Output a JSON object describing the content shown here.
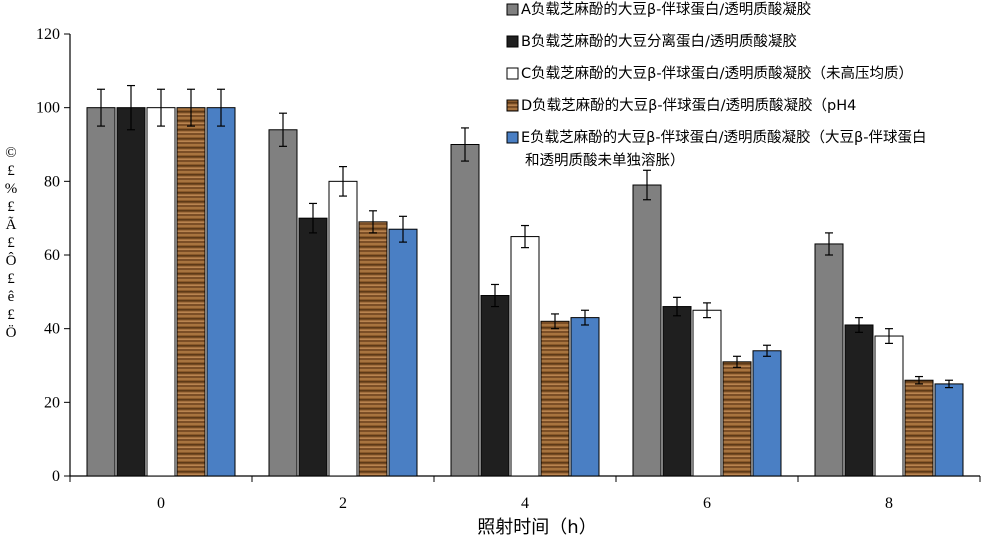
{
  "chart_data": {
    "type": "bar",
    "categories": [
      "0",
      "2",
      "4",
      "6",
      "8"
    ],
    "xlabel": "照射时间（h）",
    "ylabel": "£%£Ã£Ô£ê£Ö",
    "ylabel_glyphs": [
      "©",
      "£",
      "%",
      "£",
      "Ã",
      "£",
      "Ô",
      "£",
      "ê",
      "£",
      "Ö"
    ],
    "ylim": [
      0,
      120
    ],
    "yticks": [
      0,
      20,
      40,
      60,
      80,
      100,
      120
    ],
    "grid": false,
    "legend_position": "top-right",
    "series": [
      {
        "name": "A负载芝麻酚的大豆β-伴球蛋白/透明质酸凝胶",
        "legend_lines": [
          "A负载芝麻酚的大豆β-伴球蛋白/透明质酸凝胶"
        ],
        "values": [
          100,
          94,
          90,
          79,
          63
        ],
        "errors": [
          5,
          4.5,
          4.5,
          4,
          3
        ],
        "fill": "#808080",
        "style": "solid"
      },
      {
        "name": "B负载芝麻酚的大豆分离蛋白/透明质酸凝胶",
        "legend_lines": [
          "B负载芝麻酚的大豆分离蛋白/透明质酸凝胶"
        ],
        "values": [
          100,
          70,
          49,
          46,
          41
        ],
        "errors": [
          6,
          4,
          3,
          2.5,
          2
        ],
        "fill": "#1f1f1f",
        "style": "solid"
      },
      {
        "name": "C负载芝麻酚的大豆β-伴球蛋白/透明质酸凝胶（未高压均质）",
        "legend_lines": [
          "C负载芝麻酚的大豆β-伴球蛋白/透明质酸凝胶（未高压均质）"
        ],
        "values": [
          100,
          80,
          65,
          45,
          38
        ],
        "errors": [
          5,
          4,
          3,
          2,
          2
        ],
        "fill": "#ffffff",
        "style": "solid"
      },
      {
        "name": "D负载芝麻酚的大豆β-伴球蛋白/透明质酸凝胶（pH4",
        "legend_lines": [
          "D负载芝麻酚的大豆β-伴球蛋白/透明质酸凝胶（pH4"
        ],
        "values": [
          100,
          69,
          42,
          31,
          26
        ],
        "errors": [
          5,
          3,
          2,
          1.5,
          1
        ],
        "fill": "#8b5a2b",
        "style": "wood"
      },
      {
        "name": "E负载芝麻酚的大豆β-伴球蛋白/透明质酸凝胶（大豆β-伴球蛋白和透明质酸未单独溶胀）",
        "legend_lines": [
          "E负载芝麻酚的大豆β-伴球蛋白/透明质酸凝胶（大豆β-伴球蛋白",
          "和透明质酸未单独溶胀）"
        ],
        "values": [
          100,
          67,
          43,
          34,
          25
        ],
        "errors": [
          5,
          3.5,
          2,
          1.5,
          1
        ],
        "fill": "#4a7fc4",
        "style": "solid"
      }
    ]
  }
}
